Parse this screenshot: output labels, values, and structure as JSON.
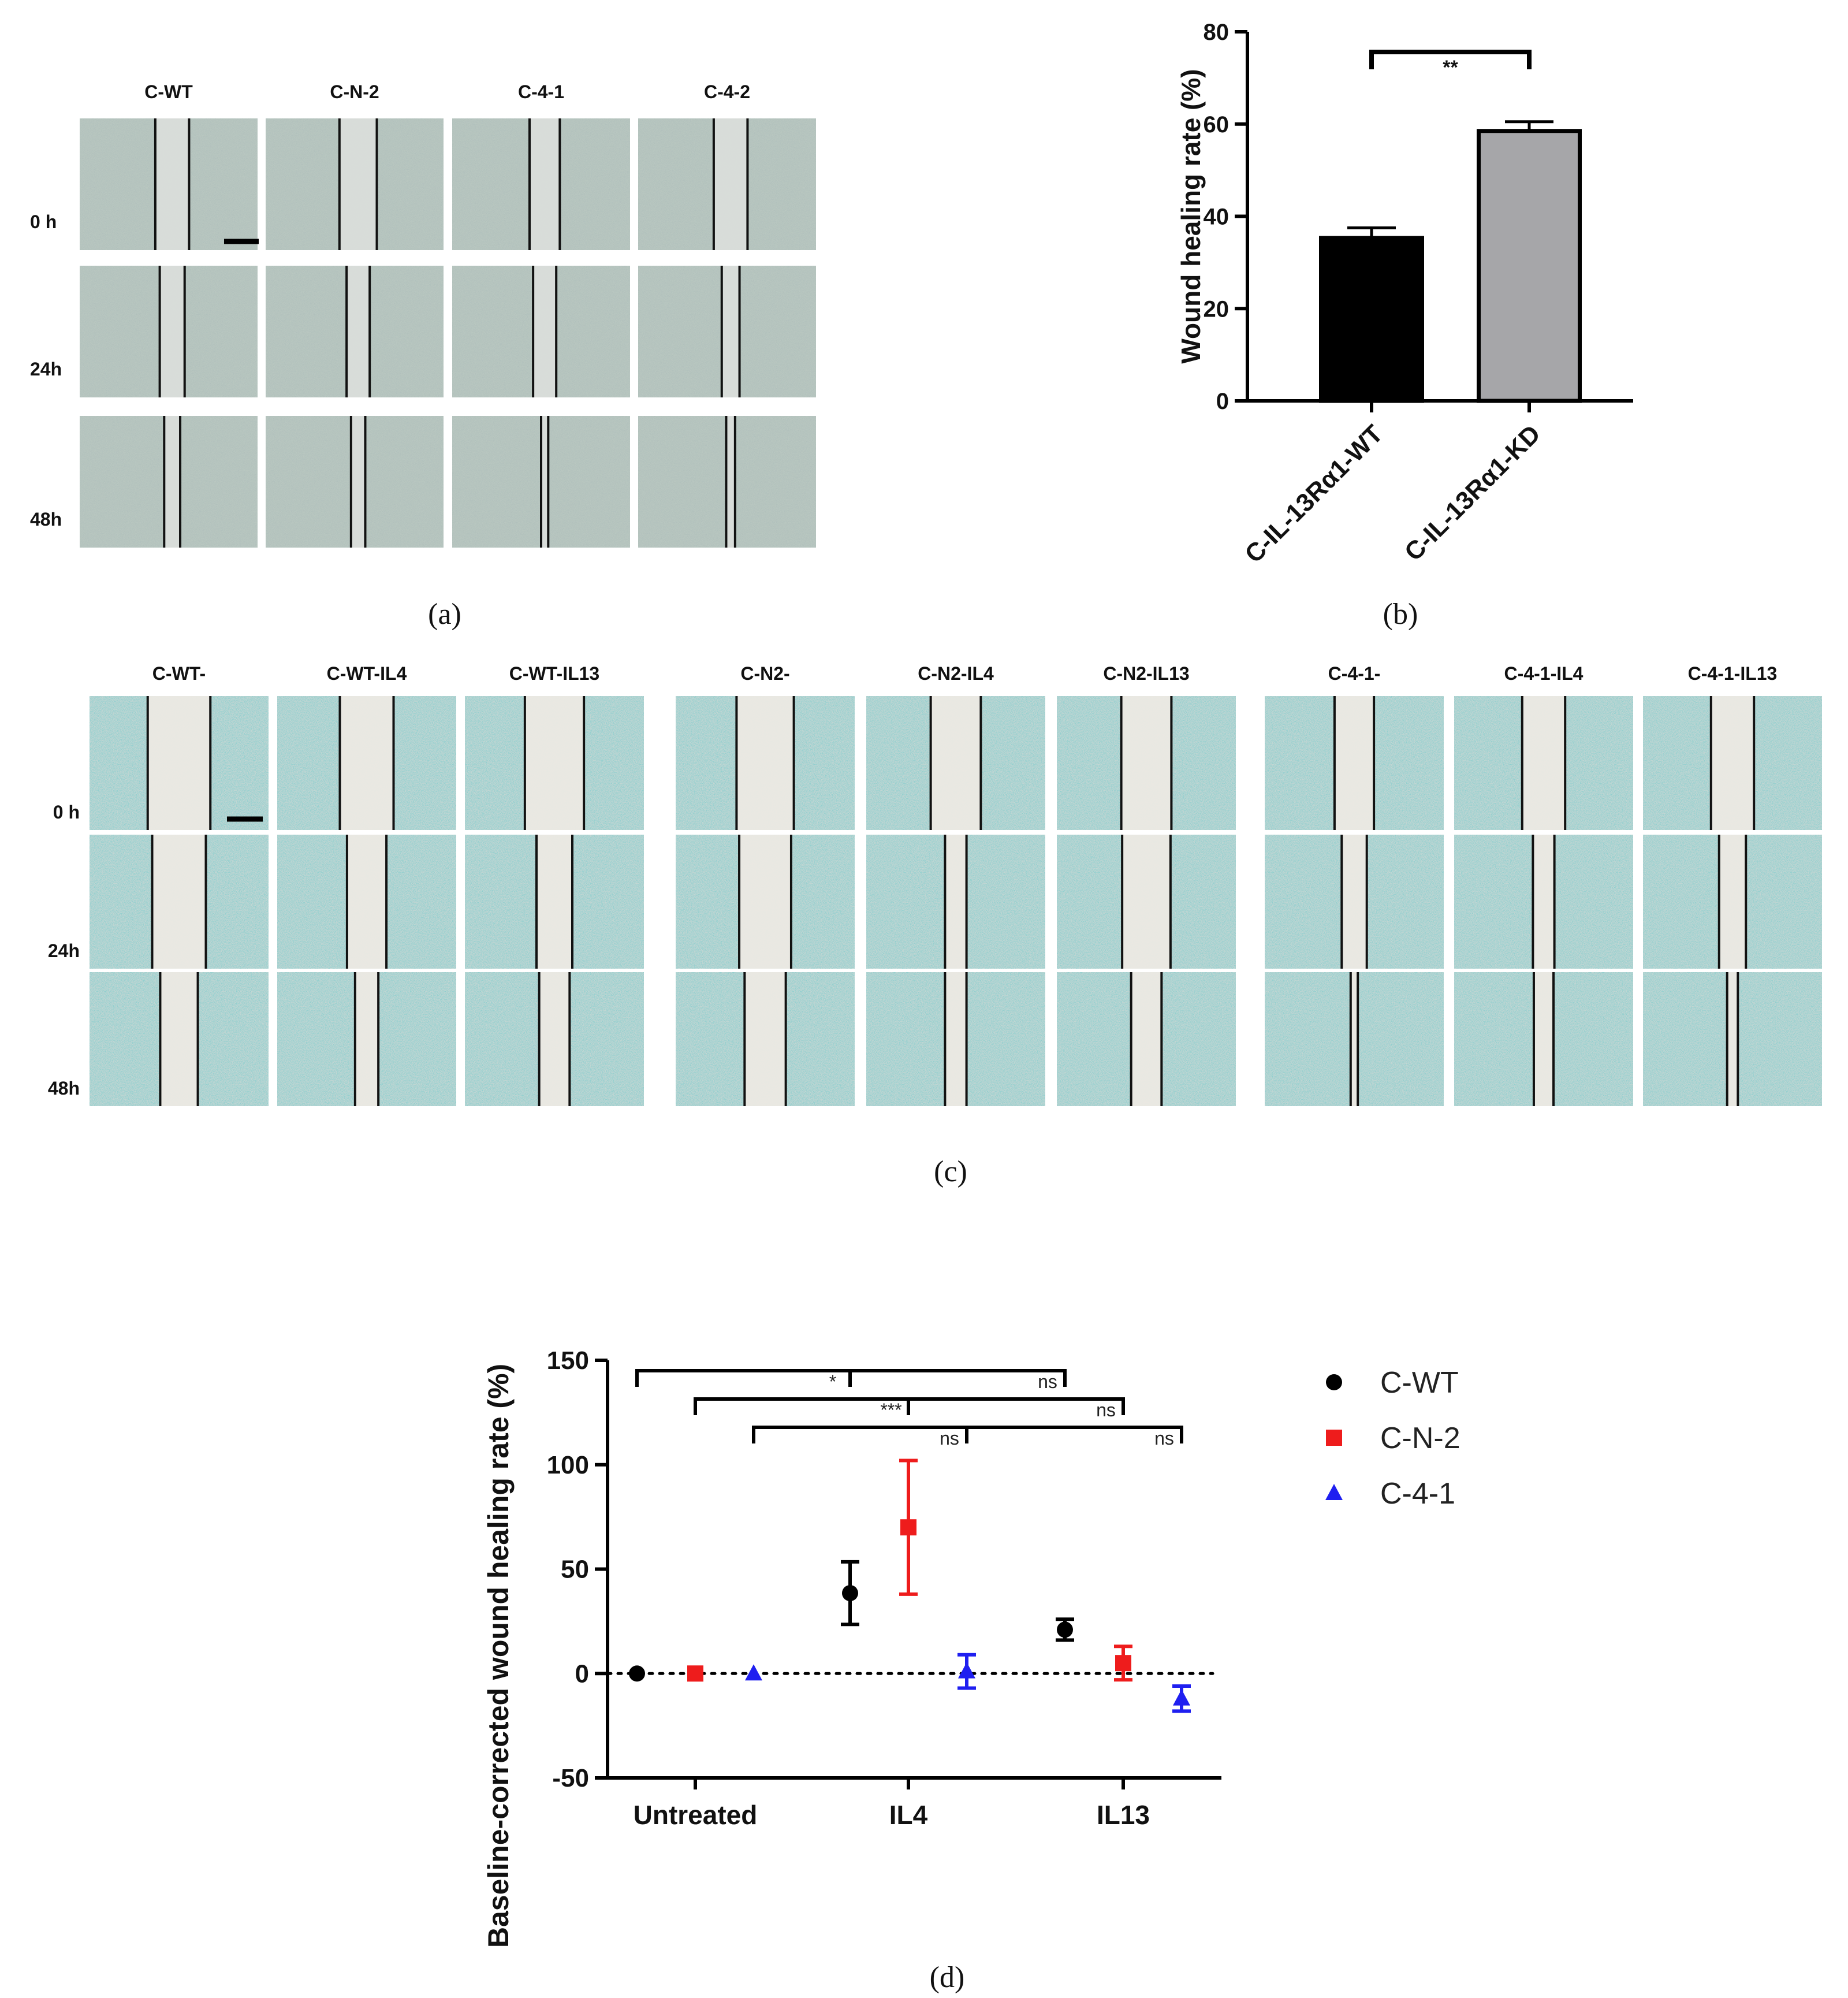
{
  "panel_a": {
    "caption": "(a)",
    "columns": [
      "C-WT",
      "C-N-2",
      "C-4-1",
      "C-4-2"
    ],
    "rows": [
      "0 h",
      "24h",
      "48h"
    ],
    "gap_fraction": [
      [
        0.19,
        0.21,
        0.17,
        0.19
      ],
      [
        0.14,
        0.13,
        0.13,
        0.1
      ],
      [
        0.09,
        0.08,
        0.04,
        0.05
      ]
    ]
  },
  "panel_c": {
    "caption": "(c)",
    "groups": [
      {
        "columns": [
          "C-WT-",
          "C-WT-IL4",
          "C-WT-IL13"
        ]
      },
      {
        "columns": [
          "C-N2-",
          "C-N2-IL4",
          "C-N2-IL13"
        ]
      },
      {
        "columns": [
          "C-4-1-",
          "C-4-1-IL4",
          "C-4-1-IL13"
        ]
      }
    ],
    "rows": [
      "0 h",
      "24h",
      "48h"
    ],
    "gap_fraction": [
      [
        0.35,
        0.3,
        0.33,
        0.32,
        0.28,
        0.28,
        0.22,
        0.24,
        0.24
      ],
      [
        0.3,
        0.22,
        0.2,
        0.29,
        0.12,
        0.27,
        0.14,
        0.12,
        0.15
      ],
      [
        0.21,
        0.13,
        0.17,
        0.23,
        0.12,
        0.17,
        0.04,
        0.11,
        0.06
      ]
    ]
  },
  "chart_data": [
    {
      "id": "b",
      "type": "bar",
      "caption": "(b)",
      "categories": [
        "C-IL-13Rα1-WT",
        "C-IL-13Rα1-KD"
      ],
      "values": [
        35.3,
        58.5
      ],
      "errors": [
        2.2,
        2.0
      ],
      "bar_colors": [
        "#000000",
        "#a6a6a9"
      ],
      "ylabel": "Wound healing rate (%)",
      "ylim": [
        0,
        80
      ],
      "yticks": [
        0,
        20,
        40,
        60,
        80
      ],
      "significance": [
        {
          "pair": [
            0,
            1
          ],
          "label": "**"
        }
      ]
    },
    {
      "id": "d",
      "type": "scatter",
      "caption": "(d)",
      "categories": [
        "Untreated",
        "IL4",
        "IL13"
      ],
      "ylabel": "Baseline-corrected wound healing rate (%)",
      "ylim": [
        -50,
        150
      ],
      "yticks": [
        -50,
        0,
        50,
        100,
        150
      ],
      "baseline": 0,
      "series": [
        {
          "name": "C-WT",
          "color": "#000000",
          "marker": "circle",
          "values": [
            0,
            38.5,
            21
          ],
          "errors": [
            0,
            15,
            5
          ]
        },
        {
          "name": "C-N-2",
          "color": "#ee1c1c",
          "marker": "square",
          "values": [
            0,
            70,
            5
          ],
          "errors": [
            0,
            32,
            8
          ]
        },
        {
          "name": "C-4-1",
          "color": "#1f1ff0",
          "marker": "triangle",
          "values": [
            0,
            1,
            -12
          ],
          "errors": [
            0,
            8,
            6
          ]
        }
      ],
      "significance": [
        {
          "series": 0,
          "from": 0,
          "to": 1,
          "label": "*"
        },
        {
          "series": 0,
          "from": 1,
          "to": 2,
          "label": "ns"
        },
        {
          "series": 1,
          "from": 0,
          "to": 1,
          "label": "***"
        },
        {
          "series": 1,
          "from": 1,
          "to": 2,
          "label": "ns"
        },
        {
          "series": 2,
          "from": 0,
          "to": 1,
          "label": "ns"
        },
        {
          "series": 2,
          "from": 1,
          "to": 2,
          "label": "ns"
        }
      ]
    }
  ]
}
